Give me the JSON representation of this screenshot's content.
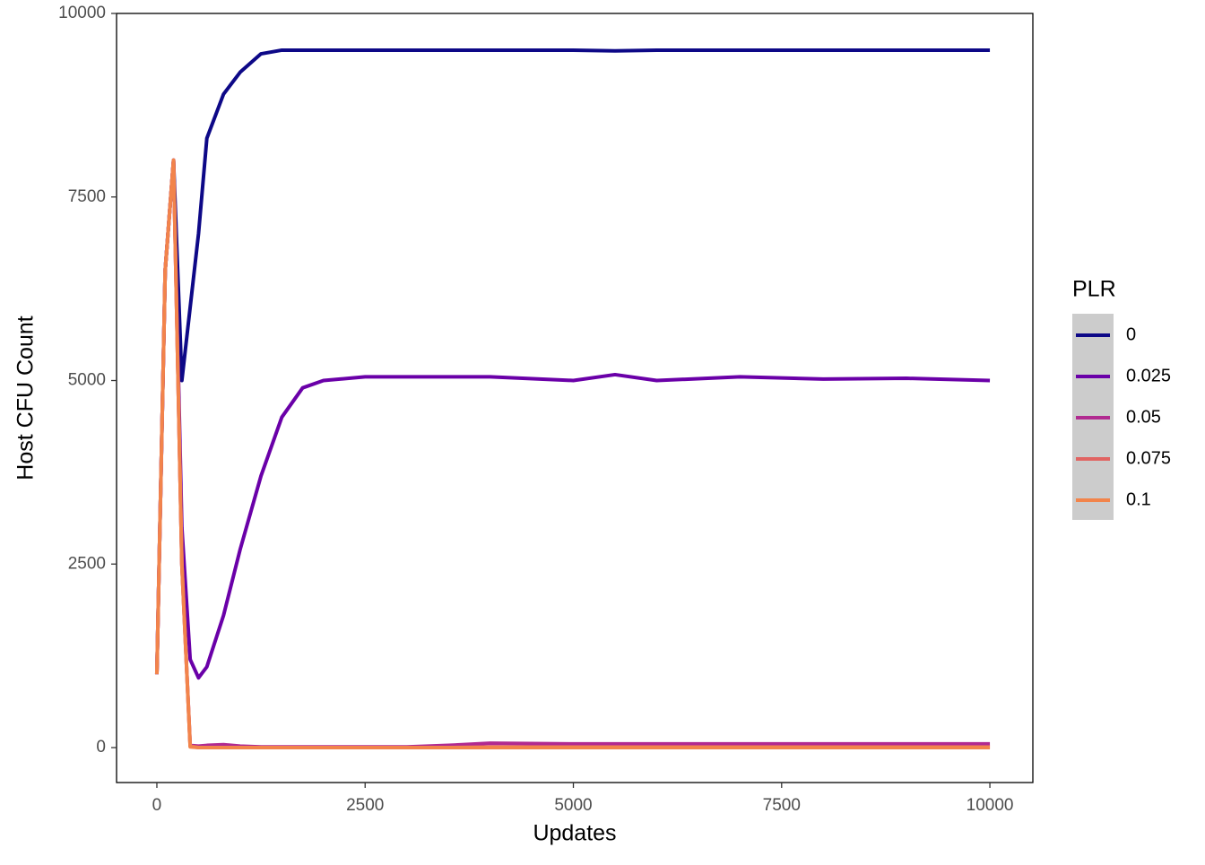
{
  "chart_data": {
    "type": "line",
    "x_label": "Updates",
    "y_label": "Host CFU Count",
    "legend_title": "PLR",
    "legend_position": "right",
    "x": [
      0,
      100,
      200,
      300,
      400,
      500,
      600,
      800,
      1000,
      1250,
      1500,
      1750,
      2000,
      2500,
      3000,
      3500,
      4000,
      5000,
      5500,
      6000,
      7000,
      8000,
      9000,
      10000
    ],
    "series": [
      {
        "name": "0",
        "color": "#0d0887",
        "values": [
          1000,
          6500,
          8000,
          5000,
          6000,
          7000,
          8300,
          8900,
          9200,
          9450,
          9500,
          9500,
          9500,
          9500,
          9500,
          9500,
          9500,
          9500,
          9490,
          9500,
          9500,
          9500,
          9500,
          9500
        ]
      },
      {
        "name": "0.025",
        "color": "#6a00a8",
        "values": [
          1000,
          6500,
          8000,
          3000,
          1200,
          950,
          1100,
          1800,
          2700,
          3700,
          4500,
          4900,
          5000,
          5050,
          5050,
          5050,
          5050,
          5000,
          5080,
          5000,
          5050,
          5020,
          5030,
          5000
        ]
      },
      {
        "name": "0.05",
        "color": "#b12a90",
        "values": [
          1000,
          6500,
          8000,
          2500,
          30,
          20,
          30,
          40,
          20,
          10,
          10,
          10,
          10,
          10,
          10,
          30,
          60,
          50,
          50,
          50,
          50,
          50,
          50,
          50
        ]
      },
      {
        "name": "0.075",
        "color": "#e16462",
        "values": [
          1000,
          6500,
          8000,
          2500,
          20,
          0,
          0,
          0,
          0,
          0,
          0,
          0,
          0,
          0,
          0,
          0,
          10,
          10,
          10,
          10,
          10,
          10,
          10,
          10
        ]
      },
      {
        "name": "0.1",
        "color": "#f2844b",
        "values": [
          1000,
          6500,
          8000,
          2500,
          10,
          0,
          0,
          0,
          0,
          0,
          0,
          0,
          0,
          0,
          0,
          0,
          0,
          0,
          0,
          0,
          0,
          0,
          0,
          0
        ]
      }
    ],
    "xlim": [
      -484,
      10516
    ],
    "ylim": [
      -476,
      10000
    ],
    "xticks": [
      0,
      2500,
      5000,
      7500,
      10000
    ],
    "yticks": [
      0,
      2500,
      5000,
      7500,
      10000
    ],
    "grid": false
  }
}
